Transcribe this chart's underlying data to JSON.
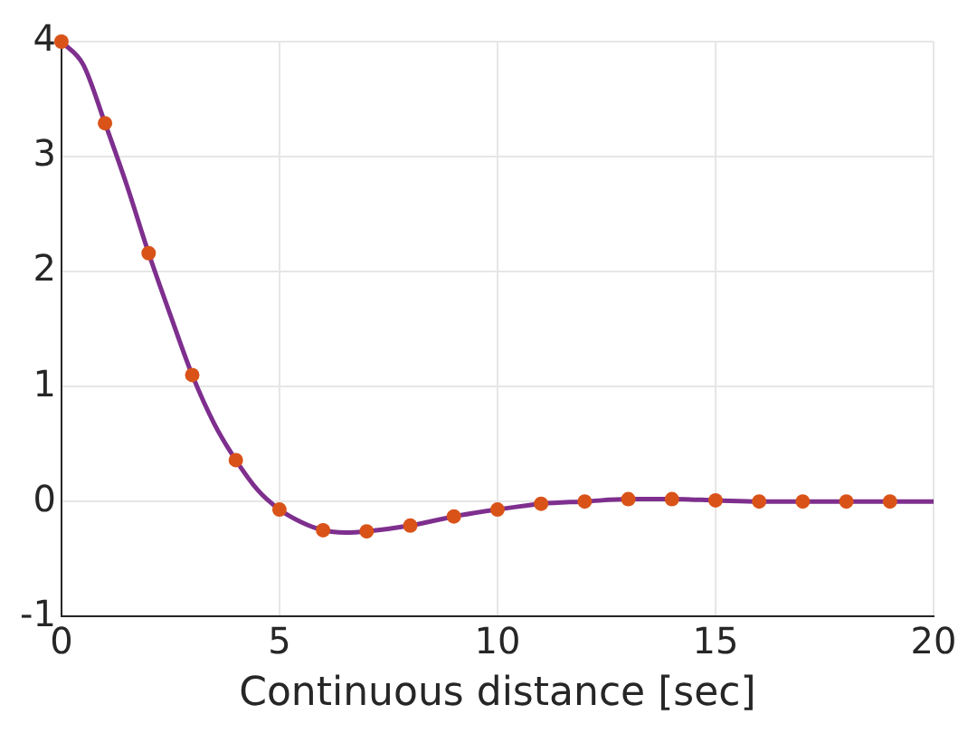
{
  "chart_data": {
    "type": "line",
    "xlabel": "Continuous distance [sec]",
    "xlim": [
      0,
      20
    ],
    "xticks": [
      0,
      5,
      10,
      15,
      20
    ],
    "ylim": [
      -1,
      4
    ],
    "yticks": [
      -1,
      0,
      1,
      2,
      3,
      4
    ],
    "grid": true,
    "series": [
      {
        "color": "#7e2f8e",
        "marker": "none",
        "line_style": "solid",
        "x": [
          0,
          0.5,
          1,
          1.5,
          2,
          2.5,
          3,
          3.5,
          4,
          4.5,
          5,
          5.5,
          6,
          6.5,
          7,
          8,
          9,
          10,
          11,
          12,
          13,
          14,
          15,
          16,
          17,
          18,
          19,
          20
        ],
        "values": [
          4,
          3.8,
          3.29,
          2.75,
          2.16,
          1.62,
          1.1,
          0.68,
          0.36,
          0.1,
          -0.07,
          -0.18,
          -0.25,
          -0.27,
          -0.26,
          -0.21,
          -0.13,
          -0.07,
          -0.02,
          0,
          0.02,
          0.02,
          0.01,
          0,
          0,
          0,
          0,
          0
        ]
      },
      {
        "type": "scatter",
        "color": "#d95319",
        "marker": "circle",
        "x": [
          0,
          1,
          2,
          3,
          4,
          5,
          6,
          7,
          8,
          9,
          10,
          11,
          12,
          13,
          14,
          15,
          16,
          17,
          18,
          19
        ],
        "values": [
          4,
          3.29,
          2.16,
          1.1,
          0.36,
          -0.07,
          -0.25,
          -0.26,
          -0.21,
          -0.13,
          -0.07,
          -0.02,
          0,
          0.02,
          0.02,
          0.01,
          0,
          0,
          0,
          0
        ]
      }
    ]
  }
}
